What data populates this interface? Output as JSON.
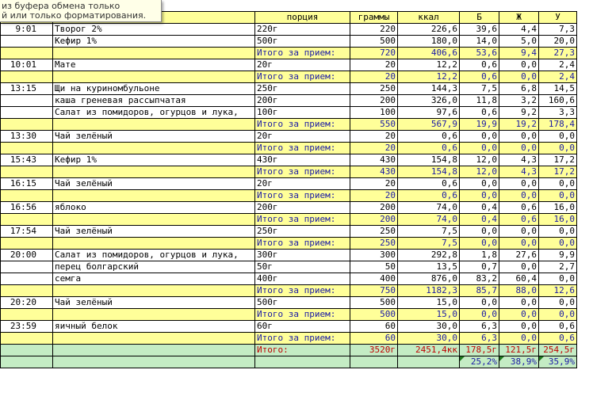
{
  "tooltip": {
    "line1": "из буфера обмена только",
    "line2": "й или только форматирования."
  },
  "headers": [
    "",
    "кт",
    "порция",
    "граммы",
    "ккал",
    "Б",
    "Ж",
    "У"
  ],
  "rows": [
    {
      "type": "item",
      "time": "9:01",
      "product": "Творог 2%",
      "portion": "220г",
      "grams": "220",
      "kcal": "226,6",
      "b": "39,6",
      "zh": "4,4",
      "u": "7,3"
    },
    {
      "type": "item",
      "time": "",
      "product": "Кефир 1%",
      "portion": "500г",
      "grams": "500",
      "kcal": "180,0",
      "b": "14,0",
      "zh": "5,0",
      "u": "20,0"
    },
    {
      "type": "total",
      "label": "Итого за прием:",
      "grams": "720",
      "kcal": "406,6",
      "b": "53,6",
      "zh": "9,4",
      "u": "27,3"
    },
    {
      "type": "item",
      "time": "10:01",
      "product": "Мате",
      "portion": "20г",
      "grams": "20",
      "kcal": "12,2",
      "b": "0,6",
      "zh": "0,0",
      "u": "2,4"
    },
    {
      "type": "total",
      "label": "Итого за прием:",
      "grams": "20",
      "kcal": "12,2",
      "b": "0,6",
      "zh": "0,0",
      "u": "2,4"
    },
    {
      "type": "item",
      "time": "13:15",
      "product": "Щи на куриномбульоне",
      "portion": "250г",
      "grams": "250",
      "kcal": "144,3",
      "b": "7,5",
      "zh": "6,8",
      "u": "14,5"
    },
    {
      "type": "item",
      "time": "",
      "product": "каша греневая рассыпчатая",
      "portion": "200г",
      "grams": "200",
      "kcal": "326,0",
      "b": "11,8",
      "zh": "3,2",
      "u": "160,6"
    },
    {
      "type": "item",
      "time": "",
      "product": "Салат из помидоров, огурцов и лука,",
      "portion": "100г",
      "grams": "100",
      "kcal": "97,6",
      "b": "0,6",
      "zh": "9,2",
      "u": "3,3"
    },
    {
      "type": "total",
      "label": "Итого за прием:",
      "grams": "550",
      "kcal": "567,9",
      "b": "19,9",
      "zh": "19,2",
      "u": "178,4"
    },
    {
      "type": "item",
      "time": "13:30",
      "product": "Чай зелёный",
      "portion": "20г",
      "grams": "20",
      "kcal": "0,6",
      "b": "0,0",
      "zh": "0,0",
      "u": "0,0"
    },
    {
      "type": "total",
      "label": "Итого за прием:",
      "grams": "20",
      "kcal": "0,6",
      "b": "0,0",
      "zh": "0,0",
      "u": "0,0"
    },
    {
      "type": "item",
      "time": "15:43",
      "product": "Кефир 1%",
      "portion": "430г",
      "grams": "430",
      "kcal": "154,8",
      "b": "12,0",
      "zh": "4,3",
      "u": "17,2"
    },
    {
      "type": "total",
      "label": "Итого за прием:",
      "grams": "430",
      "kcal": "154,8",
      "b": "12,0",
      "zh": "4,3",
      "u": "17,2"
    },
    {
      "type": "item",
      "time": "16:15",
      "product": "Чай зелёный",
      "portion": "20г",
      "grams": "20",
      "kcal": "0,6",
      "b": "0,0",
      "zh": "0,0",
      "u": "0,0"
    },
    {
      "type": "total",
      "label": "Итого за прием:",
      "grams": "20",
      "kcal": "0,6",
      "b": "0,0",
      "zh": "0,0",
      "u": "0,0"
    },
    {
      "type": "item",
      "time": "16:56",
      "product": "яблоко",
      "portion": "200г",
      "grams": "200",
      "kcal": "74,0",
      "b": "0,4",
      "zh": "0,6",
      "u": "16,0"
    },
    {
      "type": "total",
      "label": "Итого за прием:",
      "grams": "200",
      "kcal": "74,0",
      "b": "0,4",
      "zh": "0,6",
      "u": "16,0"
    },
    {
      "type": "item",
      "time": "17:54",
      "product": "Чай зелёный",
      "portion": "250г",
      "grams": "250",
      "kcal": "7,5",
      "b": "0,0",
      "zh": "0,0",
      "u": "0,0"
    },
    {
      "type": "total",
      "label": "Итого за прием:",
      "grams": "250",
      "kcal": "7,5",
      "b": "0,0",
      "zh": "0,0",
      "u": "0,0"
    },
    {
      "type": "item",
      "time": "20:00",
      "product": "Салат из помидоров, огурцов и лука,",
      "portion": "300г",
      "grams": "300",
      "kcal": "292,8",
      "b": "1,8",
      "zh": "27,6",
      "u": "9,9"
    },
    {
      "type": "item",
      "time": "",
      "product": "перец болгарский",
      "portion": "50г",
      "grams": "50",
      "kcal": "13,5",
      "b": "0,7",
      "zh": "0,0",
      "u": "2,7"
    },
    {
      "type": "item",
      "time": "",
      "product": "семга",
      "portion": "400г",
      "grams": "400",
      "kcal": "876,0",
      "b": "83,2",
      "zh": "60,4",
      "u": "0,0"
    },
    {
      "type": "total",
      "label": "Итого за прием:",
      "grams": "750",
      "kcal": "1182,3",
      "b": "85,7",
      "zh": "88,0",
      "u": "12,6"
    },
    {
      "type": "item",
      "time": "20:20",
      "product": "Чай зелёный",
      "portion": "500г",
      "grams": "500",
      "kcal": "15,0",
      "b": "0,0",
      "zh": "0,0",
      "u": "0,0"
    },
    {
      "type": "total",
      "label": "Итого за прием:",
      "grams": "500",
      "kcal": "15,0",
      "b": "0,0",
      "zh": "0,0",
      "u": "0,0"
    },
    {
      "type": "item",
      "time": "23:59",
      "product": "яичный белок",
      "portion": "60г",
      "grams": "60",
      "kcal": "30,0",
      "b": "6,3",
      "zh": "0,0",
      "u": "0,6"
    },
    {
      "type": "total",
      "label": "Итого за прием:",
      "grams": "60",
      "kcal": "30,0",
      "b": "6,3",
      "zh": "0,0",
      "u": "0,6"
    }
  ],
  "grand_total": {
    "label": "Итого:",
    "grams": "3520г",
    "kcal": "2451,4кк",
    "b": "178,5г",
    "zh": "121,5г",
    "u": "254,5г"
  },
  "percent": {
    "b": "25,2%",
    "zh": "38,9%",
    "u": "35,9%"
  }
}
